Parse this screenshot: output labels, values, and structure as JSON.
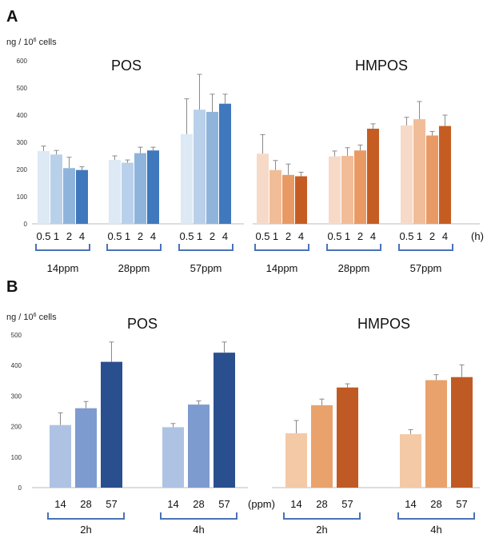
{
  "panels": {
    "a": {
      "letter": "A",
      "unit_label": "ng / 10",
      "unit_sup": "6",
      "unit_tail": " cells"
    },
    "b": {
      "letter": "B",
      "unit_label": "ng / 10",
      "unit_sup": "6",
      "unit_tail": " cells"
    }
  },
  "colors": {
    "pos": [
      "#dde9f5",
      "#b9d0ea",
      "#8fb4dc",
      "#3f78bd"
    ],
    "hmpos": [
      "#f6dac7",
      "#f1bd98",
      "#e99a64",
      "#c55d23"
    ],
    "pos_b": [
      "#aec3e3",
      "#7e9bcf",
      "#2a4f8e"
    ],
    "hmpos_b": [
      "#f4c9a6",
      "#eaa26d",
      "#c05a24"
    ],
    "bracket": "#4a72b8",
    "axis": "#bbbbbb"
  },
  "chart_data": [
    {
      "type": "bar",
      "panel": "A",
      "ylim": [
        0,
        600
      ],
      "yticks": [
        "0",
        "100",
        "200",
        "300",
        "400",
        "500",
        "600"
      ],
      "ytick_values": [
        0,
        100,
        200,
        300,
        400,
        500,
        600
      ],
      "groups": [
        {
          "title": "POS",
          "color_key": "pos",
          "categories": [
            "0.5",
            "1",
            "2",
            "4"
          ],
          "subgroups": [
            {
              "label": "14ppm",
              "values": [
                268,
                255,
                205,
                198
              ],
              "errors": [
                18,
                15,
                40,
                12
              ]
            },
            {
              "label": "28ppm",
              "values": [
                235,
                225,
                260,
                270
              ],
              "errors": [
                15,
                10,
                22,
                12
              ]
            },
            {
              "label": "57ppm",
              "values": [
                330,
                420,
                412,
                442
              ],
              "errors": [
                130,
                130,
                65,
                35
              ]
            }
          ]
        },
        {
          "title": "HMPOS",
          "color_key": "hmpos",
          "categories": [
            "0.5",
            "1",
            "2",
            "4"
          ],
          "subgroups": [
            {
              "label": "14ppm",
              "values": [
                258,
                198,
                180,
                175
              ],
              "errors": [
                70,
                35,
                40,
                15
              ]
            },
            {
              "label": "28ppm",
              "values": [
                248,
                250,
                270,
                350
              ],
              "errors": [
                20,
                30,
                20,
                18
              ]
            },
            {
              "label": "57ppm",
              "values": [
                362,
                385,
                325,
                360
              ],
              "errors": [
                30,
                65,
                15,
                40
              ]
            }
          ]
        }
      ],
      "unit_suffix": "(h)"
    },
    {
      "type": "bar",
      "panel": "B",
      "ylim": [
        0,
        500
      ],
      "yticks": [
        "0",
        "100",
        "200",
        "300",
        "400",
        "500"
      ],
      "ytick_values": [
        0,
        100,
        200,
        300,
        400,
        500
      ],
      "groups": [
        {
          "title": "POS",
          "color_key": "pos_b",
          "categories": [
            "14",
            "28",
            "57"
          ],
          "subgroups": [
            {
              "label": "2h",
              "values": [
                205,
                260,
                412
              ],
              "errors": [
                40,
                22,
                65
              ]
            },
            {
              "label": "4h",
              "values": [
                198,
                272,
                442
              ],
              "errors": [
                12,
                12,
                35
              ]
            }
          ]
        },
        {
          "title": "HMPOS",
          "color_key": "hmpos_b",
          "categories": [
            "14",
            "28",
            "57"
          ],
          "subgroups": [
            {
              "label": "2h",
              "values": [
                178,
                270,
                328
              ],
              "errors": [
                42,
                20,
                12
              ]
            },
            {
              "label": "4h",
              "values": [
                175,
                352,
                362
              ],
              "errors": [
                15,
                18,
                40
              ]
            }
          ]
        }
      ],
      "unit_suffix": "(ppm)"
    }
  ]
}
